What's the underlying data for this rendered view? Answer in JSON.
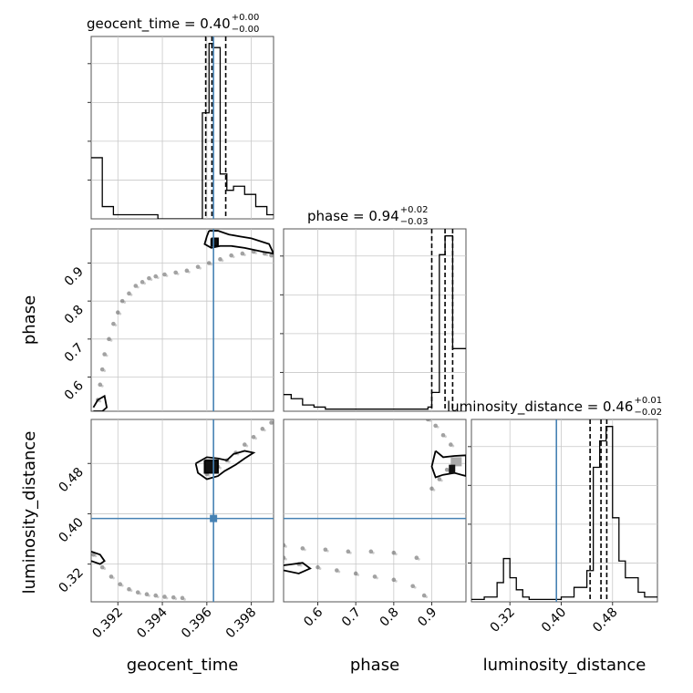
{
  "chart_data": {
    "type": "corner",
    "parameters": [
      "geocent_time",
      "phase",
      "luminosity_distance"
    ],
    "axis_labels": {
      "geocent_time": "geocent_time",
      "phase": "phase",
      "luminosity_distance": "luminosity_distance"
    },
    "ranges": {
      "geocent_time": [
        0.3908,
        0.399
      ],
      "phase": [
        0.51,
        0.99
      ],
      "luminosity_distance": [
        0.26,
        0.55
      ]
    },
    "ticks": {
      "geocent_time": [
        0.392,
        0.394,
        0.396,
        0.398
      ],
      "phase": [
        0.6,
        0.7,
        0.8,
        0.9
      ],
      "phase_y": [
        0.6,
        0.7,
        0.8,
        0.9
      ],
      "luminosity_distance": [
        0.32,
        0.4,
        0.48
      ]
    },
    "tick_labels": {
      "geocent_time": [
        "0.392",
        "0.394",
        "0.396",
        "0.398"
      ],
      "phase_x": [
        "0.6",
        "0.7",
        "0.8",
        "0.9"
      ],
      "phase_y": [
        "0.6",
        "0.7",
        "0.8",
        "0.9"
      ],
      "luminosity_distance": [
        "0.32",
        "0.40",
        "0.48"
      ]
    },
    "titles": [
      {
        "param": "geocent_time",
        "name": "geocent_time",
        "median": "0.40",
        "plus": "+0.00",
        "minus": "−0.00"
      },
      {
        "param": "phase",
        "name": "phase",
        "median": "0.94",
        "plus": "+0.02",
        "minus": "−0.03"
      },
      {
        "param": "luminosity_distance",
        "name": "luminosity_distance",
        "median": "0.46",
        "plus": "+0.01",
        "minus": "−0.02"
      }
    ],
    "truths": {
      "geocent_time": 0.3963,
      "phase": null,
      "luminosity_distance": 0.3925
    },
    "quantiles": {
      "geocent_time": [
        0.39595,
        0.39623,
        0.39685
      ],
      "phase": [
        0.9,
        0.935,
        0.955
      ],
      "luminosity_distance": [
        0.445,
        0.462,
        0.471
      ]
    },
    "hist_1d": {
      "geocent_time": {
        "edges": [
          0.3908,
          0.3913,
          0.3918,
          0.3923,
          0.3928,
          0.3933,
          0.3938,
          0.3943,
          0.3948,
          0.3953,
          0.3958,
          0.3961,
          0.3963,
          0.3966,
          0.3969,
          0.3972,
          0.3977,
          0.3982,
          0.3987,
          0.399
        ],
        "counts": [
          15,
          3,
          1,
          1,
          1,
          1,
          0,
          0,
          0,
          0,
          26,
          43,
          42,
          11,
          7,
          8,
          6,
          3,
          1
        ]
      },
      "phase": {
        "edges": [
          0.51,
          0.53,
          0.56,
          0.59,
          0.62,
          0.65,
          0.68,
          0.71,
          0.74,
          0.77,
          0.8,
          0.83,
          0.86,
          0.89,
          0.9,
          0.92,
          0.935,
          0.945,
          0.955,
          0.99
        ],
        "counts": [
          8,
          6,
          3,
          2,
          1,
          1,
          1,
          1,
          1,
          1,
          1,
          1,
          1,
          2,
          9,
          75,
          84,
          84,
          30
        ]
      },
      "luminosity_distance": {
        "edges": [
          0.26,
          0.28,
          0.3,
          0.31,
          0.32,
          0.33,
          0.34,
          0.35,
          0.36,
          0.38,
          0.4,
          0.42,
          0.44,
          0.45,
          0.46,
          0.47,
          0.48,
          0.49,
          0.5,
          0.52,
          0.53,
          0.55
        ],
        "counts": [
          1,
          2,
          8,
          18,
          10,
          5,
          2,
          1,
          1,
          1,
          2,
          6,
          13,
          56,
          67,
          73,
          35,
          17,
          10,
          4,
          2
        ]
      }
    },
    "scatter_samples": {
      "phase_vs_geocent_time": {
        "x": [
          0.3911,
          0.3912,
          0.3913,
          0.3914,
          0.3916,
          0.3918,
          0.392,
          0.3922,
          0.3925,
          0.3928,
          0.3931,
          0.3934,
          0.3937,
          0.3941,
          0.3946,
          0.3951,
          0.3956,
          0.3961,
          0.3966,
          0.3971,
          0.3976,
          0.3981,
          0.3986,
          0.3989
        ],
        "y": [
          0.54,
          0.58,
          0.62,
          0.66,
          0.7,
          0.74,
          0.77,
          0.8,
          0.82,
          0.84,
          0.85,
          0.86,
          0.865,
          0.87,
          0.875,
          0.88,
          0.89,
          0.9,
          0.91,
          0.92,
          0.925,
          0.93,
          0.925,
          0.92
        ]
      },
      "luminosity_distance_vs_geocent_time": {
        "x": [
          0.3909,
          0.3913,
          0.3917,
          0.3921,
          0.3925,
          0.3929,
          0.3933,
          0.3937,
          0.3941,
          0.3945,
          0.3949,
          0.396,
          0.3965,
          0.3969,
          0.3973,
          0.3977,
          0.3981,
          0.3985,
          0.3989
        ],
        "y": [
          0.335,
          0.315,
          0.3,
          0.288,
          0.28,
          0.275,
          0.272,
          0.27,
          0.268,
          0.267,
          0.266,
          0.463,
          0.475,
          0.485,
          0.497,
          0.51,
          0.522,
          0.535,
          0.545
        ]
      },
      "luminosity_distance_vs_phase": {
        "x": [
          0.51,
          0.55,
          0.6,
          0.65,
          0.7,
          0.75,
          0.8,
          0.85,
          0.88,
          0.51,
          0.56,
          0.62,
          0.68,
          0.74,
          0.8,
          0.86,
          0.9,
          0.92,
          0.94,
          0.96,
          0.95,
          0.93,
          0.91,
          0.89
        ],
        "y": [
          0.33,
          0.32,
          0.315,
          0.31,
          0.305,
          0.3,
          0.295,
          0.285,
          0.27,
          0.35,
          0.345,
          0.343,
          0.34,
          0.34,
          0.338,
          0.33,
          0.44,
          0.455,
          0.47,
          0.485,
          0.51,
          0.525,
          0.54,
          0.55
        ]
      }
    },
    "contours": {
      "phase_vs_geocent_time": [
        {
          "x": [
            0.3961,
            0.3965,
            0.397,
            0.3975,
            0.398,
            0.3988,
            0.399,
            0.3985,
            0.3977,
            0.3971,
            0.3966,
            0.3962,
            0.3959,
            0.396,
            0.3961
          ],
          "y": [
            0.985,
            0.985,
            0.975,
            0.97,
            0.965,
            0.95,
            0.925,
            0.93,
            0.94,
            0.945,
            0.945,
            0.94,
            0.95,
            0.97,
            0.985
          ]
        },
        {
          "x": [
            0.3962,
            0.3965,
            0.3965,
            0.3962,
            0.3962
          ],
          "y": [
            0.965,
            0.965,
            0.945,
            0.945,
            0.965
          ]
        },
        {
          "x": [
            0.3909,
            0.3913,
            0.3915,
            0.3914,
            0.3911,
            0.3909
          ],
          "y": [
            0.51,
            0.51,
            0.52,
            0.55,
            0.54,
            0.52
          ]
        }
      ],
      "luminosity_distance_vs_geocent_time": [
        {
          "x": [
            0.3955,
            0.396,
            0.3965,
            0.3969,
            0.3972,
            0.3977,
            0.3981,
            0.3977,
            0.3973,
            0.3968,
            0.3965,
            0.396,
            0.3956,
            0.3955
          ],
          "y": [
            0.48,
            0.49,
            0.488,
            0.485,
            0.495,
            0.5,
            0.497,
            0.488,
            0.478,
            0.468,
            0.46,
            0.455,
            0.465,
            0.48
          ]
        },
        {
          "x": [
            0.3959,
            0.3965,
            0.3965,
            0.3959,
            0.3959
          ],
          "y": [
            0.485,
            0.485,
            0.465,
            0.465,
            0.485
          ]
        },
        {
          "x": [
            0.3908,
            0.3912,
            0.3914,
            0.3912,
            0.3908
          ],
          "y": [
            0.34,
            0.335,
            0.325,
            0.32,
            0.325
          ]
        }
      ],
      "luminosity_distance_vs_phase": [
        {
          "x": [
            0.91,
            0.93,
            0.96,
            0.99,
            0.99,
            0.96,
            0.93,
            0.91,
            0.9,
            0.91
          ],
          "y": [
            0.5,
            0.49,
            0.492,
            0.493,
            0.46,
            0.465,
            0.462,
            0.458,
            0.475,
            0.5
          ]
        },
        {
          "x": [
            0.51,
            0.56,
            0.58,
            0.55,
            0.51
          ],
          "y": [
            0.318,
            0.322,
            0.313,
            0.305,
            0.31
          ]
        }
      ]
    }
  }
}
